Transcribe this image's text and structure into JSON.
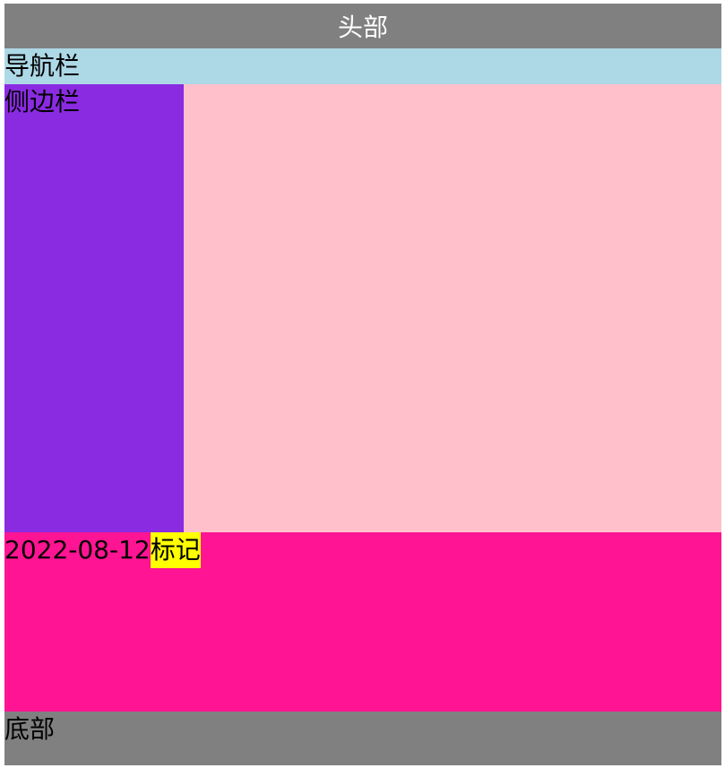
{
  "header": {
    "label": "头部"
  },
  "nav": {
    "label": "导航栏"
  },
  "sidebar": {
    "label": "侧边栏"
  },
  "article": {
    "date": "2022-08-12",
    "mark": "标记"
  },
  "footer": {
    "label": "底部"
  },
  "colors": {
    "header_bg": "#808080",
    "nav_bg": "#add8e6",
    "sidebar_bg": "#8a2be2",
    "content_bg": "#ffc0cb",
    "article_bg": "#ff1493",
    "mark_bg": "#ffff00",
    "footer_bg": "#808080"
  }
}
